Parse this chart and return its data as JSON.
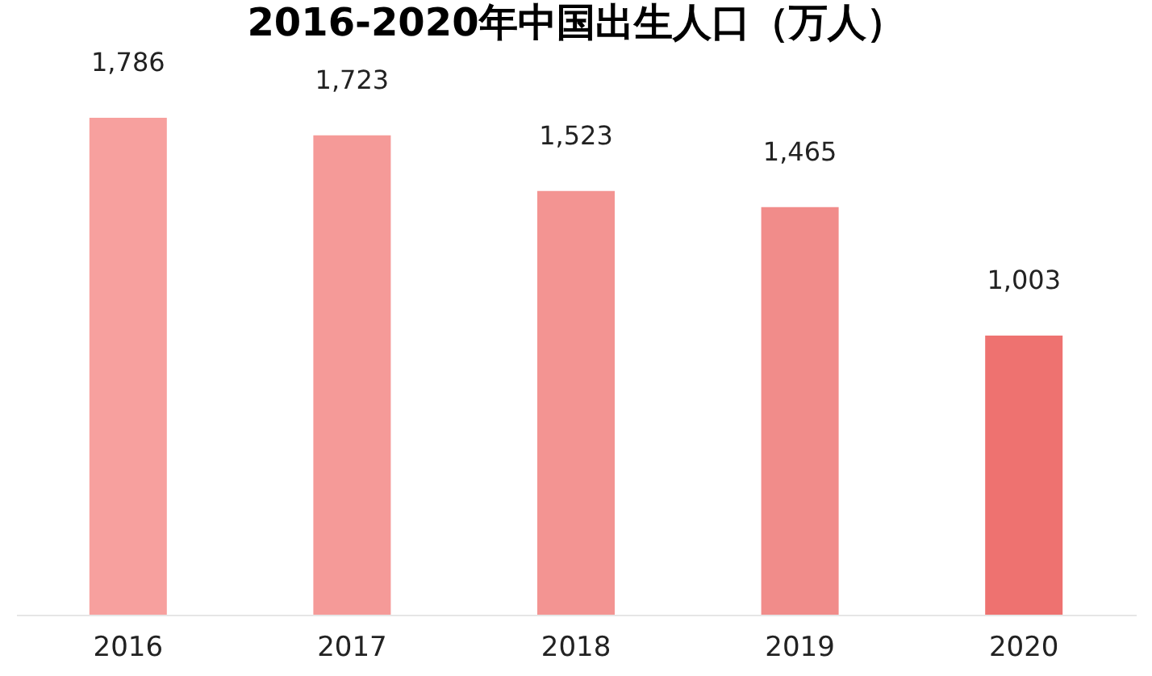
{
  "chart_data": {
    "type": "bar",
    "title": "2016-2020年中国出生人口（万人）",
    "categories": [
      "2016",
      "2017",
      "2018",
      "2019",
      "2020"
    ],
    "values": [
      1786,
      1723,
      1523,
      1465,
      1003
    ],
    "value_labels": [
      "1,786",
      "1,723",
      "1,523",
      "1,465",
      "1,003"
    ],
    "colors": [
      "#f7a09e",
      "#f59a98",
      "#f39492",
      "#f18c8a",
      "#ee7270"
    ]
  }
}
